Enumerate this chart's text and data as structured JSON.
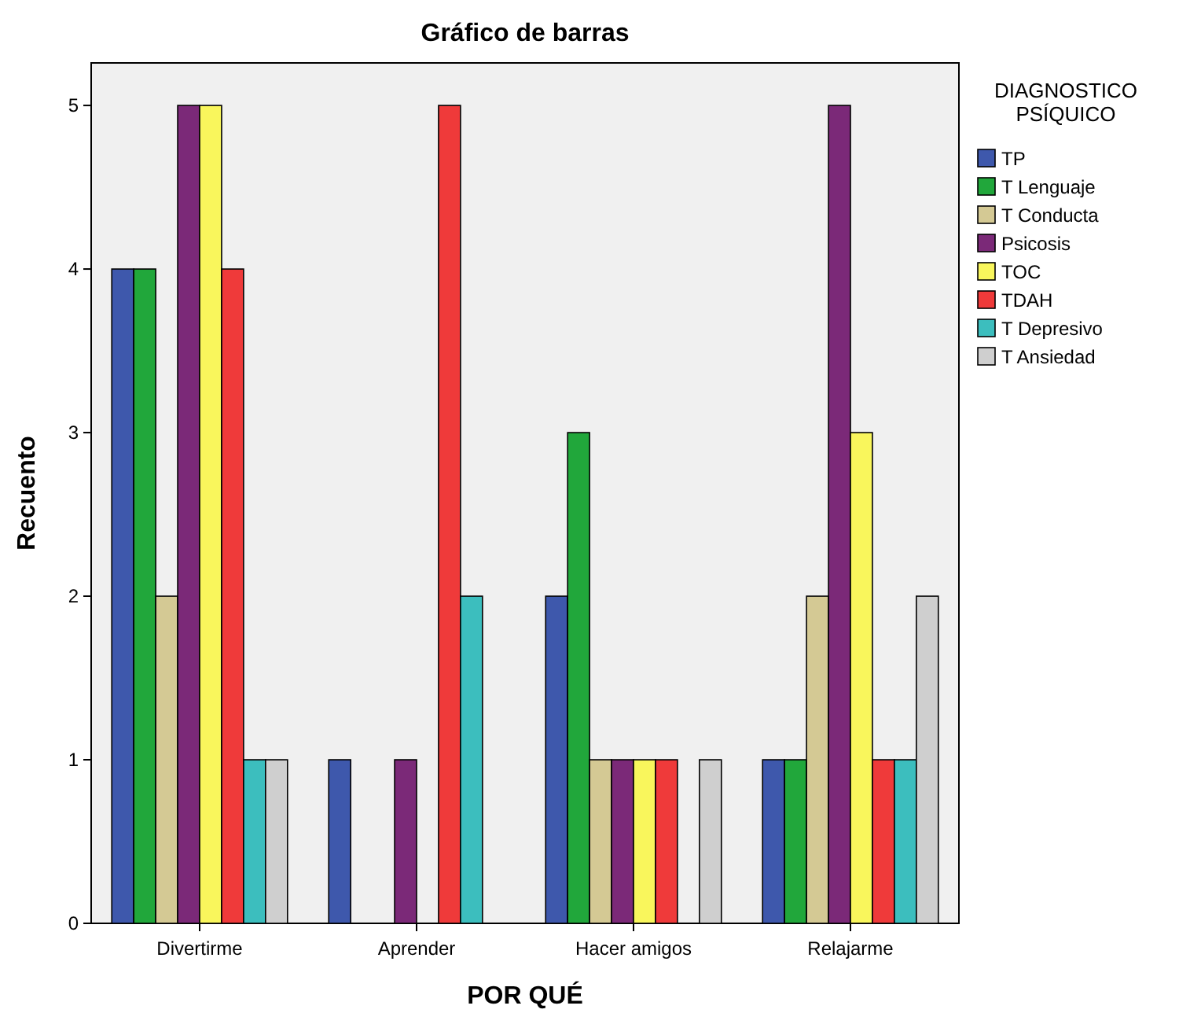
{
  "chart_data": {
    "type": "bar",
    "title": "Gráfico de barras",
    "xlabel": "POR QUÉ",
    "ylabel": "Recuento",
    "legend_title": "DIAGNOSTICO PSÍQUICO",
    "legend": "right",
    "grid": false,
    "categories": [
      "Divertirme",
      "Aprender",
      "Hacer amigos",
      "Relajarme"
    ],
    "ylim": [
      0,
      5.26
    ],
    "yticks": [
      0,
      1,
      2,
      3,
      4,
      5
    ],
    "series": [
      {
        "name": "TP",
        "color": "#3e58ac",
        "values": [
          4,
          1,
          2,
          1
        ]
      },
      {
        "name": "T Lenguaje",
        "color": "#21a73b",
        "values": [
          4,
          null,
          3,
          1
        ]
      },
      {
        "name": "T Conducta",
        "color": "#d4c994",
        "values": [
          2,
          null,
          1,
          2
        ]
      },
      {
        "name": "Psicosis",
        "color": "#7b2978",
        "values": [
          5,
          1,
          1,
          5
        ]
      },
      {
        "name": "TOC",
        "color": "#f9f65c",
        "values": [
          5,
          null,
          1,
          3
        ]
      },
      {
        "name": "TDAH",
        "color": "#ef3a3a",
        "values": [
          4,
          5,
          1,
          1
        ]
      },
      {
        "name": "T Depresivo",
        "color": "#3cbebe",
        "values": [
          1,
          2,
          null,
          1
        ]
      },
      {
        "name": "T Ansiedad",
        "color": "#cfcfcf",
        "values": [
          1,
          null,
          1,
          2
        ]
      }
    ]
  }
}
